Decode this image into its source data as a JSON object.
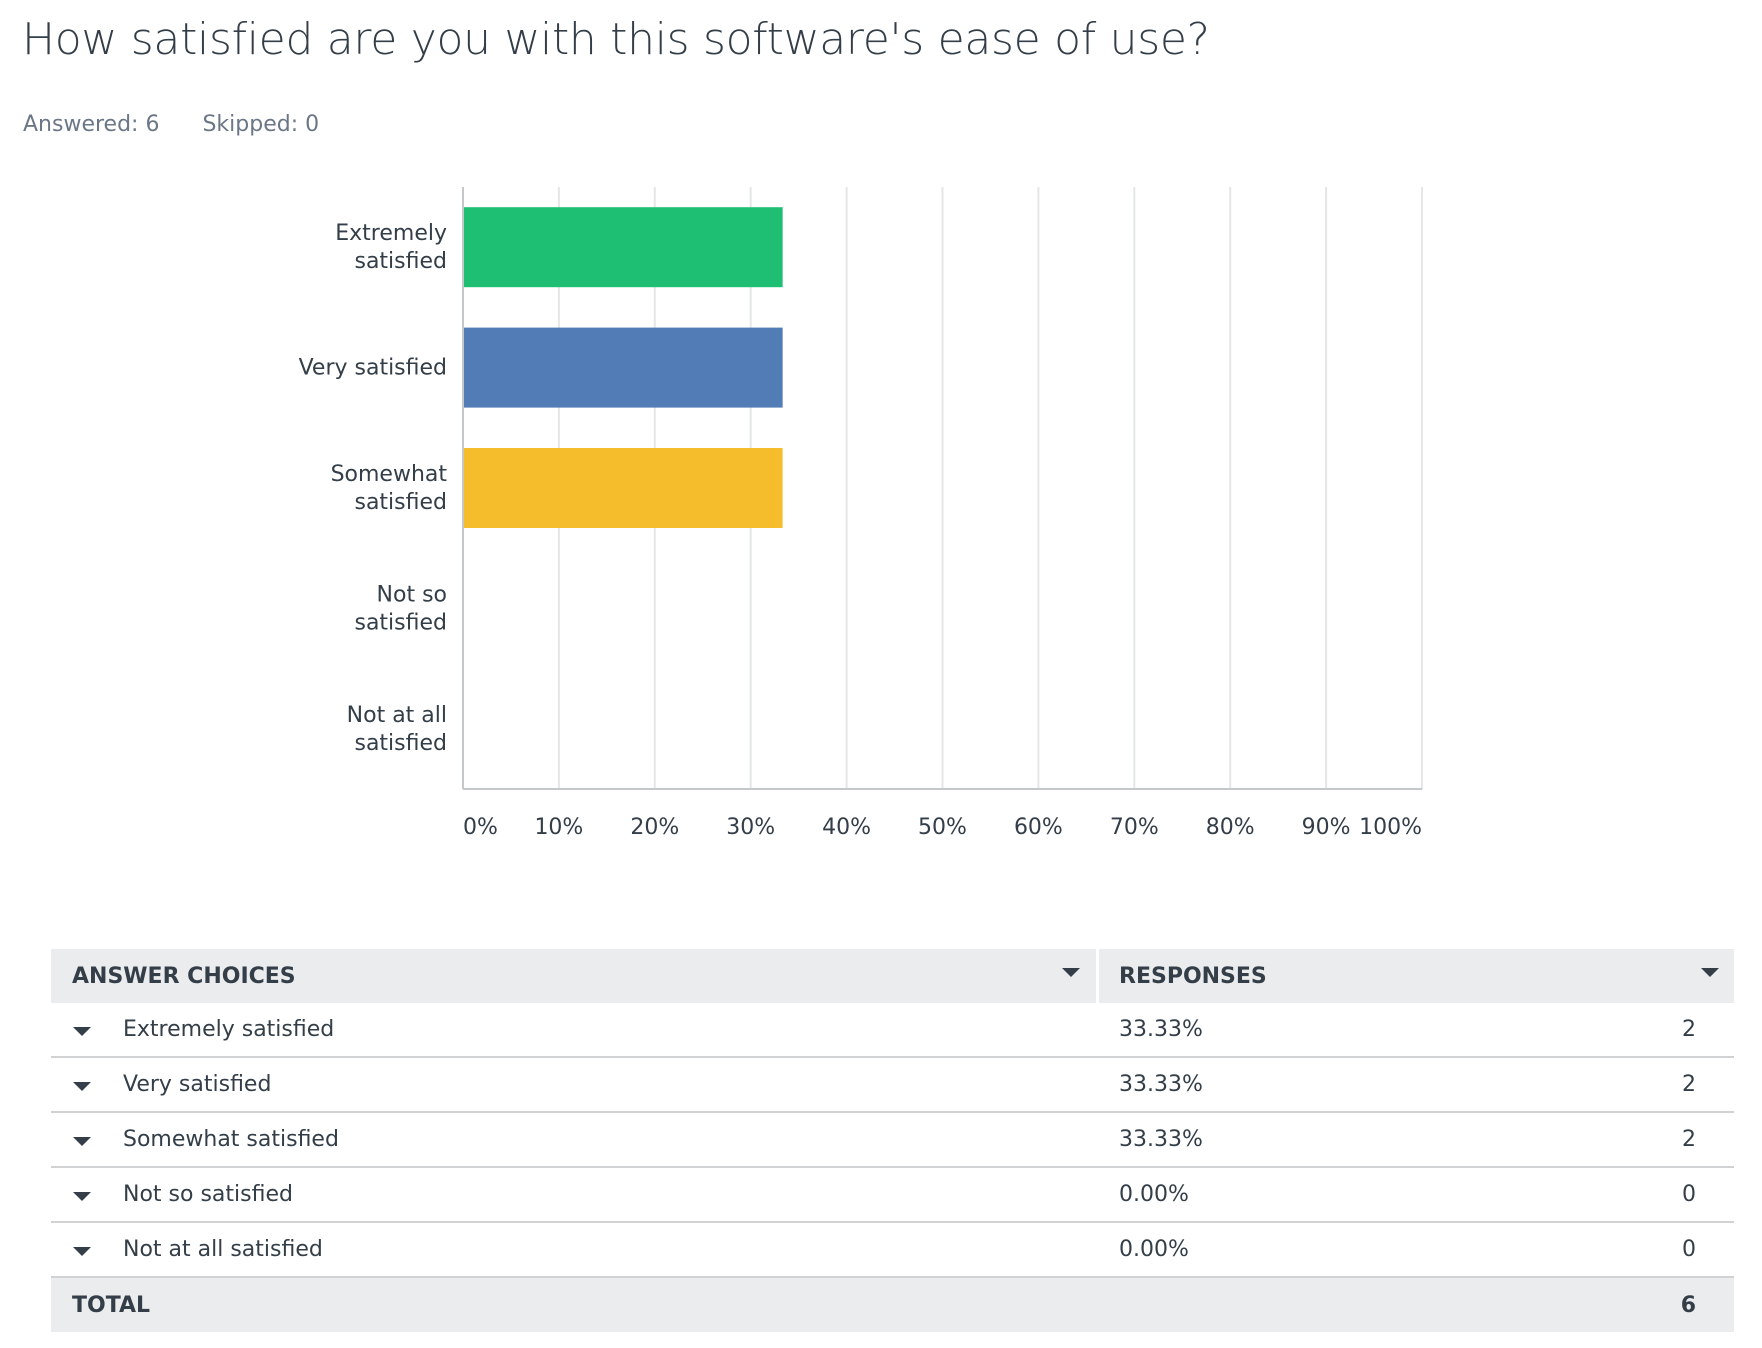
{
  "question": {
    "title": "How satisfied are you with this software's ease of use?",
    "answered": "Answered: 6",
    "skipped": "Skipped: 0"
  },
  "chart_data": {
    "type": "bar",
    "orientation": "horizontal",
    "categories": [
      "Extremely satisfied",
      "Very satisfied",
      "Somewhat satisfied",
      "Not so satisfied",
      "Not at all satisfied"
    ],
    "category_label_lines": [
      [
        "Extremely",
        "satisfied"
      ],
      [
        "Very satisfied"
      ],
      [
        "Somewhat",
        "satisfied"
      ],
      [
        "Not so",
        "satisfied"
      ],
      [
        "Not at all",
        "satisfied"
      ]
    ],
    "values": [
      33.33,
      33.33,
      33.33,
      0,
      0
    ],
    "colors": [
      "#1ebf72",
      "#527cb5",
      "#f5bd2b",
      "#d25f90",
      "#a4c83c"
    ],
    "xlim": [
      0,
      100
    ],
    "xticks": [
      "0%",
      "10%",
      "20%",
      "30%",
      "40%",
      "50%",
      "60%",
      "70%",
      "80%",
      "90%",
      "100%"
    ],
    "grid": true,
    "xlabel": "",
    "ylabel": ""
  },
  "table": {
    "headers": {
      "choices": "ANSWER CHOICES",
      "responses": "RESPONSES"
    },
    "rows": [
      {
        "choice": "Extremely satisfied",
        "percent": "33.33%",
        "count": "2"
      },
      {
        "choice": "Very satisfied",
        "percent": "33.33%",
        "count": "2"
      },
      {
        "choice": "Somewhat satisfied",
        "percent": "33.33%",
        "count": "2"
      },
      {
        "choice": "Not so satisfied",
        "percent": "0.00%",
        "count": "0"
      },
      {
        "choice": "Not at all satisfied",
        "percent": "0.00%",
        "count": "0"
      }
    ],
    "total": {
      "label": "TOTAL",
      "count": "6"
    }
  }
}
